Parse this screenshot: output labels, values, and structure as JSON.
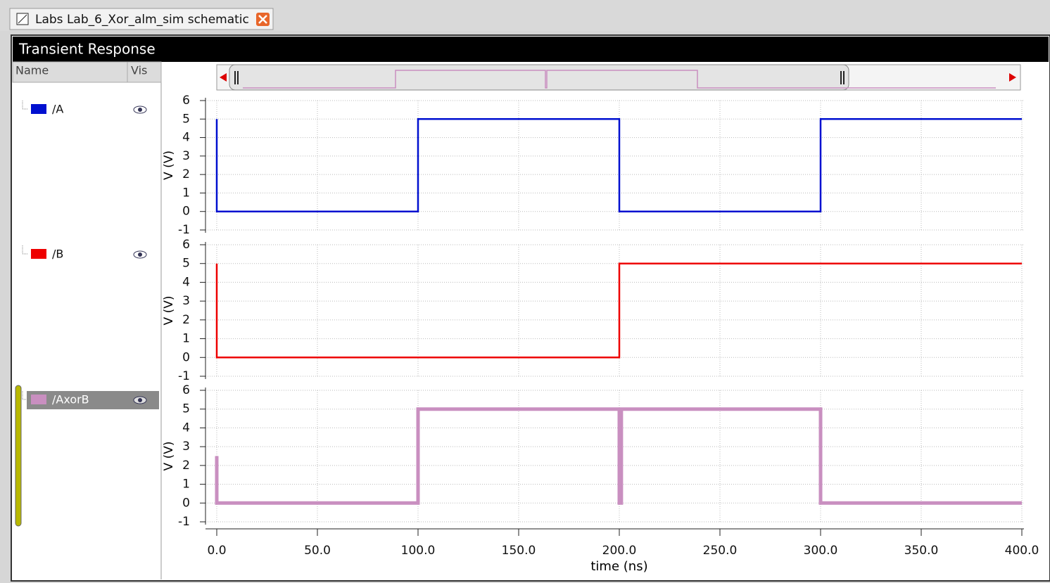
{
  "tab": {
    "title": "Labs Lab_6_Xor_alm_sim schematic"
  },
  "window": {
    "title": "Transient Response"
  },
  "signal_list": {
    "headers": [
      "Name",
      "Vis"
    ]
  },
  "chart_data": [
    {
      "type": "line",
      "ylabel": "V (V)",
      "ylim": [
        -1,
        6
      ],
      "yticks": [
        -1,
        0,
        1,
        2,
        3,
        4,
        5,
        6
      ],
      "xlim": [
        0,
        400
      ],
      "grid": true,
      "x": [
        0,
        0,
        100,
        100,
        200,
        200,
        300,
        300,
        400
      ],
      "series": [
        {
          "name": "/A",
          "color": "#0010d0",
          "values": [
            5,
            0,
            0,
            5,
            5,
            0,
            0,
            5,
            5
          ]
        }
      ]
    },
    {
      "type": "line",
      "ylabel": "V (V)",
      "ylim": [
        -1,
        6
      ],
      "yticks": [
        -1,
        0,
        1,
        2,
        3,
        4,
        5,
        6
      ],
      "xlim": [
        0,
        400
      ],
      "grid": true,
      "x": [
        0,
        0,
        200,
        200,
        400
      ],
      "series": [
        {
          "name": "/B",
          "color": "#ee0000",
          "values": [
            5,
            0,
            0,
            5,
            5
          ]
        }
      ]
    },
    {
      "type": "line",
      "ylabel": "V (V)",
      "xlabel": "time (ns)",
      "ylim": [
        -1,
        6
      ],
      "yticks": [
        -1,
        0,
        1,
        2,
        3,
        4,
        5,
        6
      ],
      "xlim": [
        0,
        400
      ],
      "grid": true,
      "xticks": [
        {
          "value": 0,
          "label": "0.0"
        },
        {
          "value": 50,
          "label": "50.0"
        },
        {
          "value": 100,
          "label": "100.0"
        },
        {
          "value": 150,
          "label": "150.0"
        },
        {
          "value": 200,
          "label": "200.0"
        },
        {
          "value": 250,
          "label": "250.0"
        },
        {
          "value": 300,
          "label": "300.0"
        },
        {
          "value": 350,
          "label": "350.0"
        },
        {
          "value": 400,
          "label": "400.0"
        }
      ],
      "x": [
        0,
        0,
        100,
        100,
        200,
        200,
        201,
        201,
        300,
        300,
        400
      ],
      "series": [
        {
          "name": "/AxorB",
          "color": "#c98fc0",
          "values": [
            2.5,
            0,
            0,
            5,
            5,
            0,
            0,
            5,
            5,
            0,
            0
          ]
        }
      ]
    }
  ]
}
